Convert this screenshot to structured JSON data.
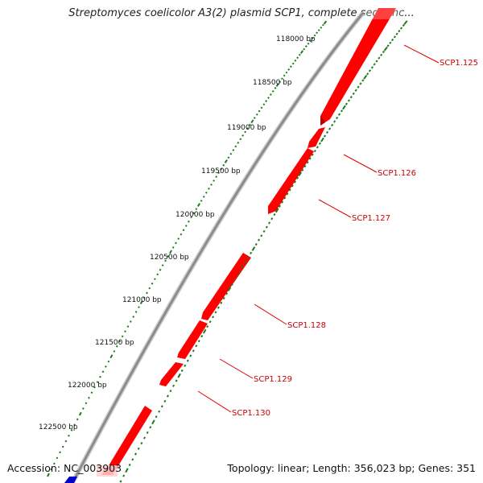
{
  "title": "Streptomyces coelicolor A3(2) plasmid SCP1, complete sequenc...",
  "footer": {
    "accession": "Accession: NC_003903",
    "summary": "Topology: linear; Length: 356,023 bp; Genes: 351"
  },
  "colors": {
    "backbone": "#8c8c8c",
    "gene_forward": "#ff0000",
    "gene_forward_dark": "#b30000",
    "gene_other": "#0000cc",
    "dots": "#1a7a1a",
    "label_line": "#e00000"
  },
  "position_labels": [
    "118000 bp",
    "118500 bp",
    "119000 bp",
    "119500 bp",
    "120000 bp",
    "120500 bp",
    "121000 bp",
    "121500 bp",
    "122000 bp",
    "122500 bp"
  ],
  "genes": [
    {
      "label": "SCP1.125"
    },
    {
      "label": "SCP1.126"
    },
    {
      "label": "SCP1.127"
    },
    {
      "label": "SCP1.128"
    },
    {
      "label": "SCP1.129"
    },
    {
      "label": "SCP1.130"
    }
  ]
}
